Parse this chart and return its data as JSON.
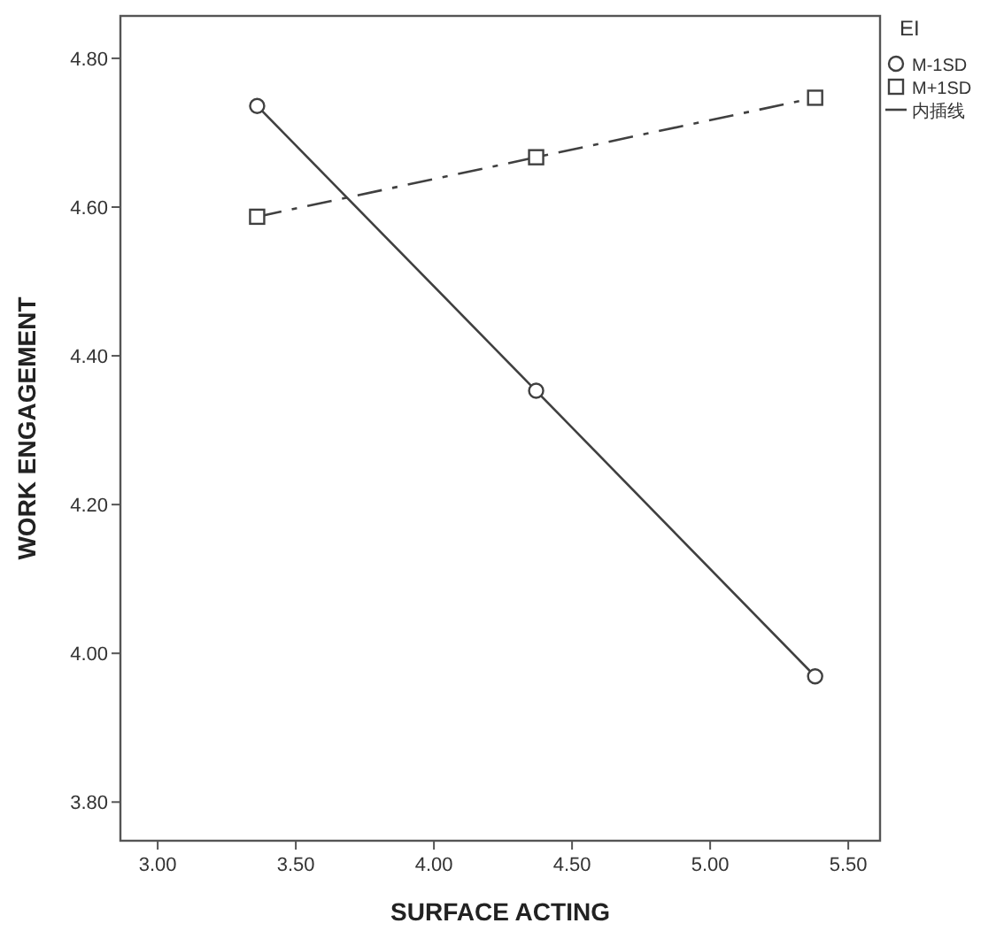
{
  "chart_data": {
    "type": "line",
    "xlabel": "SURFACE ACTING",
    "ylabel": "WORK ENGAGEMENT",
    "legend_title": "EI",
    "x": [
      3.36,
      4.37,
      5.38
    ],
    "series": [
      {
        "name": "M-1SD",
        "color": "#404040",
        "values": [
          4.736,
          4.353,
          3.969
        ],
        "marker": "circle",
        "line_style": "solid"
      },
      {
        "name": "M+1SD",
        "color": "#404040",
        "values": [
          4.587,
          4.667,
          4.747
        ],
        "marker": "square",
        "line_style": "dashed"
      }
    ],
    "xlim": [
      2.865,
      5.615
    ],
    "xticks": [
      {
        "value": 3,
        "label": "3.00"
      },
      {
        "value": 3.5,
        "label": "3.50"
      },
      {
        "value": 4,
        "label": "4.00"
      },
      {
        "value": 4.5,
        "label": "4.50"
      },
      {
        "value": 5,
        "label": "5.00"
      },
      {
        "value": 5.5,
        "label": "5.50"
      }
    ],
    "ylim": [
      3.748,
      4.857
    ],
    "yticks": [
      {
        "value": 3.8,
        "label": "3.80"
      },
      {
        "value": 4,
        "label": "4.00"
      },
      {
        "value": 4.2,
        "label": "4.20"
      },
      {
        "value": 4.4,
        "label": "4.40"
      },
      {
        "value": 4.6,
        "label": "4.60"
      },
      {
        "value": 4.8,
        "label": "4.80"
      }
    ],
    "grid": false,
    "legend": "top right",
    "annotations": [
      "内插线"
    ]
  }
}
